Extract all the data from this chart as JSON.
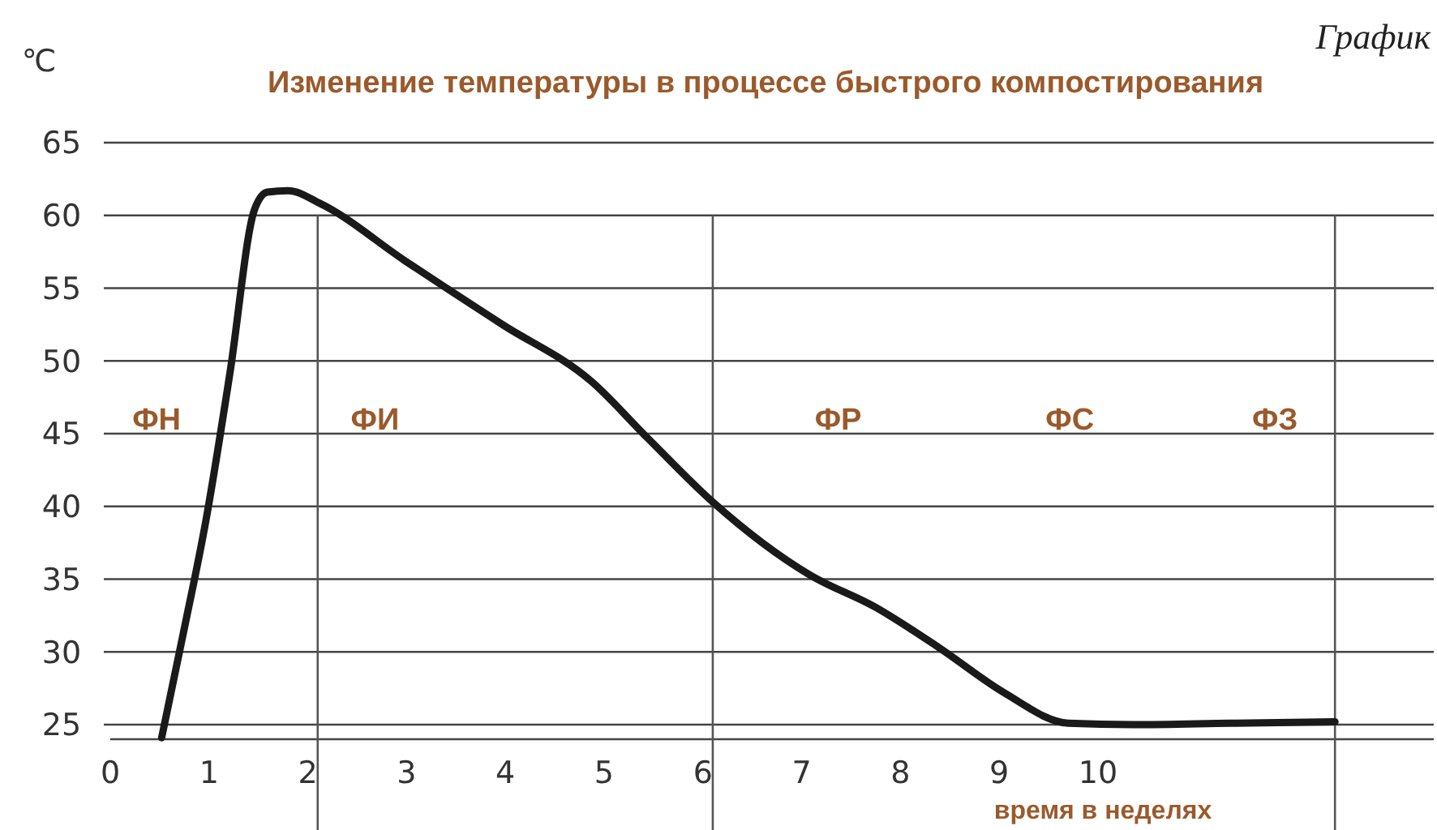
{
  "chart_data": {
    "type": "line",
    "title": "Изменение температуры в процессе быстрого компостирования",
    "xlabel": "время в неделях",
    "ylabel": "℃",
    "annotations": [
      "График",
      "ФН",
      "ФИ",
      "ФР",
      "ФС",
      "ФЗ"
    ],
    "series": [
      {
        "color": "#1a1a1a",
        "x": [
          0.52,
          0.74,
          0.97,
          1.21,
          1.46,
          1.59,
          1.8,
          2.13,
          2.98,
          3.97,
          4.87,
          5.44,
          6.1,
          7.08,
          7.74,
          8.39,
          9.05,
          9.7,
          10.36,
          11.34,
          12.4
        ],
        "values": [
          24.1,
          31.3,
          39.1,
          49.1,
          60.4,
          61.6,
          61.7,
          60.8,
          56.9,
          52.5,
          48.6,
          44.7,
          40.3,
          35.3,
          33.1,
          30.3,
          27.2,
          25.1,
          25,
          25.1,
          25.2
        ]
      }
    ],
    "xlim": [
      0,
      13.4
    ],
    "xticks": [
      0,
      1,
      2,
      3,
      4,
      5,
      6,
      7,
      8,
      9,
      10
    ],
    "ylim": [
      24,
      65
    ],
    "yticks": [
      25,
      30,
      35,
      40,
      45,
      50,
      55,
      60,
      65
    ],
    "grid": "y",
    "marker": "none",
    "line_style": "solid",
    "ref_lines": [
      {
        "axis": "x",
        "value": 2.1,
        "color": "#555555"
      },
      {
        "axis": "x",
        "value": 6.1,
        "color": "#555555"
      },
      {
        "axis": "x",
        "value": 12.4,
        "color": "#555555"
      }
    ]
  }
}
